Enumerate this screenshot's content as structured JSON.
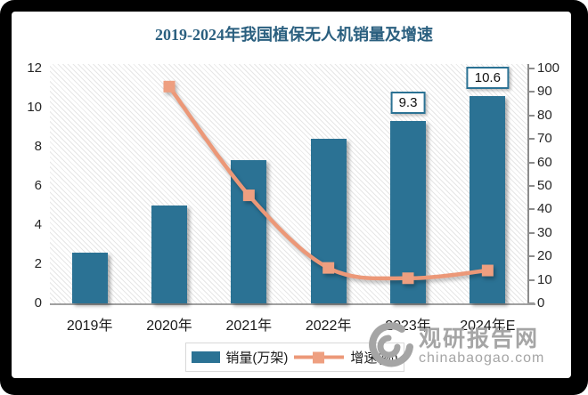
{
  "title": "2019-2024年我国植保无人机销量及增速",
  "chart_data": {
    "type": "combo(bar+line)",
    "title": "2019-2024年我国植保无人机销量及增速",
    "categories": [
      "2019年",
      "2020年",
      "2021年",
      "2022年",
      "2023年",
      "2024年E"
    ],
    "series": [
      {
        "name": "销量(万架)",
        "type": "bar",
        "axis": "left",
        "color": "#2B7294",
        "values": [
          2.6,
          5.0,
          7.3,
          8.4,
          9.3,
          10.6
        ],
        "data_labels": [
          null,
          null,
          null,
          null,
          "9.3",
          "10.6"
        ]
      },
      {
        "name": "增速(%)",
        "type": "line",
        "axis": "right",
        "color": "#EC9878",
        "marker": "square",
        "marker_color": "#EE9F80",
        "values": [
          null,
          92.3,
          46.0,
          15.1,
          10.7,
          14.0
        ]
      }
    ],
    "left_axis": {
      "min": 0,
      "max": 12,
      "step": 2,
      "ticks": [
        0,
        2,
        4,
        6,
        8,
        10,
        12
      ]
    },
    "right_axis": {
      "min": 0,
      "max": 100,
      "step": 10,
      "ticks": [
        0,
        10,
        20,
        30,
        40,
        50,
        60,
        70,
        80,
        90,
        100
      ]
    },
    "legend_position": "bottom",
    "grid": false,
    "plot_background": "diagonal-hatch"
  },
  "legend": {
    "items": [
      {
        "label": "销量(万架)",
        "swatch": "bar",
        "color": "#2B7294"
      },
      {
        "label": "增速(%)",
        "swatch": "line-marker",
        "color": "#EC9878"
      }
    ]
  },
  "watermark": {
    "logo": "swirl-icon",
    "name": "观研报告网",
    "domain": "chinabaogao.com",
    "color": "#A5A5A5"
  },
  "colors": {
    "bar": "#2B7294",
    "line": "#EC9878",
    "title": "#2A5F7F",
    "axis_text": "#262626",
    "baseline": "#A0A0A0",
    "frame": "#000000",
    "legend_border": "#D9D9D9"
  }
}
